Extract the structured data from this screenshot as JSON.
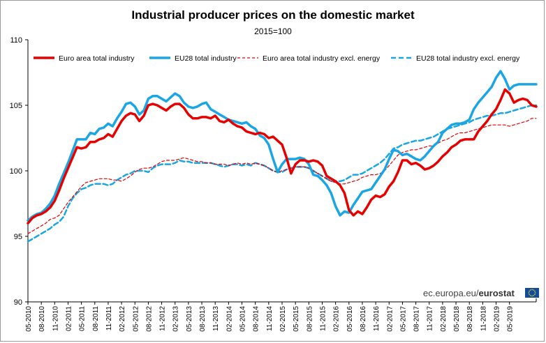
{
  "chart_data": {
    "type": "line",
    "title": "Industrial producer prices on the domestic market",
    "subtitle": "2015=100",
    "xlabel": "",
    "ylabel": "",
    "ylim": [
      90,
      110
    ],
    "yticks": [
      "90",
      "95",
      "100",
      "105",
      "110"
    ],
    "x_tick_labels": [
      "05-2010",
      "08-2010",
      "11-2010",
      "02-2011",
      "05-2011",
      "08-2011",
      "11-2011",
      "02-2012",
      "05-2012",
      "08-2012",
      "11-2012",
      "02-2013",
      "05-2013",
      "08-2013",
      "11-2013",
      "02-2014",
      "05-2014",
      "08-2014",
      "11-2014",
      "02-2015",
      "05-2015",
      "08-2015",
      "11-2015",
      "02-2016",
      "05-2016",
      "08-2016",
      "11-2016",
      "02-2017",
      "05-2017",
      "08-2017",
      "11-2017",
      "02-2018",
      "05-2018",
      "08-2018",
      "11-2018",
      "02-2019",
      "05-2019"
    ],
    "series": [
      {
        "name": "Euro area total industry",
        "color": "#e60000",
        "style": "solid-thick",
        "values": [
          96.0,
          96.4,
          96.6,
          96.7,
          96.9,
          97.2,
          97.7,
          98.5,
          99.4,
          100.2,
          101.0,
          101.8,
          101.7,
          101.8,
          102.2,
          102.2,
          102.4,
          102.5,
          102.8,
          102.6,
          103.2,
          103.8,
          104.2,
          104.4,
          104.3,
          103.8,
          104.2,
          105.0,
          105.1,
          105.0,
          104.8,
          104.6,
          104.9,
          105.1,
          105.1,
          104.8,
          104.3,
          104.0,
          104.0,
          104.1,
          104.1,
          104.0,
          104.2,
          103.8,
          103.7,
          103.9,
          103.6,
          103.4,
          103.3,
          103.0,
          102.9,
          102.8,
          102.9,
          102.8,
          102.5,
          102.6,
          102.3,
          102.0,
          101.0,
          99.8,
          100.5,
          100.8,
          100.8,
          100.7,
          100.8,
          100.7,
          100.4,
          99.6,
          99.4,
          99.2,
          98.9,
          98.3,
          97.0,
          96.6,
          96.9,
          96.7,
          97.2,
          97.8,
          98.1,
          98.0,
          98.2,
          98.8,
          99.2,
          99.9,
          100.8,
          100.8,
          100.5,
          100.6,
          100.4,
          100.1,
          100.2,
          100.4,
          100.7,
          101.1,
          101.4,
          101.8,
          102.0,
          102.3,
          102.4,
          102.4,
          102.4,
          103.0,
          103.4,
          103.8,
          104.3,
          104.7,
          105.4,
          106.2,
          105.9,
          105.2,
          105.4,
          105.5,
          105.4,
          105.0,
          104.9
        ],
        "data_name": "series-line-euro-area-total"
      },
      {
        "name": "EU28 total industry",
        "color": "#1aa6e4",
        "style": "solid-thick",
        "values": [
          96.2,
          96.5,
          96.7,
          96.8,
          97.1,
          97.5,
          98.1,
          99.0,
          99.8,
          100.6,
          101.5,
          102.4,
          102.4,
          102.4,
          102.9,
          102.8,
          103.2,
          103.3,
          103.6,
          103.4,
          104.0,
          104.5,
          105.1,
          105.2,
          104.9,
          104.3,
          104.6,
          105.5,
          105.7,
          105.7,
          105.5,
          105.3,
          105.6,
          105.9,
          105.7,
          105.2,
          104.9,
          104.8,
          104.9,
          105.1,
          105.2,
          104.7,
          104.5,
          104.3,
          104.1,
          103.9,
          103.8,
          103.7,
          103.6,
          103.7,
          103.4,
          103.2,
          102.7,
          102.5,
          102.0,
          100.9,
          99.9,
          100.5,
          100.9,
          100.9,
          100.9,
          101.0,
          100.9,
          100.5,
          99.7,
          99.6,
          99.3,
          98.9,
          98.3,
          97.3,
          96.6,
          96.9,
          96.8,
          97.4,
          97.9,
          98.4,
          98.5,
          98.6,
          99.1,
          99.6,
          100.1,
          100.9,
          101.6,
          101.5,
          101.2,
          101.3,
          101.1,
          100.9,
          100.8,
          101.1,
          101.5,
          101.9,
          102.2,
          102.9,
          103.2,
          103.5,
          103.6,
          103.6,
          103.7,
          103.9,
          104.7,
          105.2,
          105.6,
          106.0,
          106.4,
          107.1,
          107.6,
          107.0,
          106.2,
          106.5,
          106.6,
          106.6,
          106.6,
          106.6,
          106.6
        ],
        "data_name": "series-line-eu28-total"
      },
      {
        "name": "Euro area total industry excl. energy",
        "color": "#e60000",
        "style": "dashed-thin",
        "values": [
          95.2,
          95.4,
          95.6,
          95.8,
          96.0,
          96.3,
          96.4,
          96.6,
          97.1,
          97.6,
          98.0,
          98.4,
          98.8,
          99.1,
          99.2,
          99.3,
          99.4,
          99.4,
          99.4,
          99.3,
          99.3,
          99.2,
          99.4,
          99.6,
          99.9,
          100.1,
          100.2,
          100.2,
          100.3,
          100.5,
          100.7,
          100.8,
          100.8,
          100.8,
          100.9,
          101.0,
          100.9,
          100.8,
          100.7,
          100.7,
          100.6,
          100.6,
          100.5,
          100.5,
          100.5,
          100.4,
          100.5,
          100.6,
          100.5,
          100.6,
          100.5,
          100.6,
          100.5,
          100.4,
          100.2,
          100.0,
          99.9,
          100.0,
          100.1,
          100.2,
          100.3,
          100.3,
          100.3,
          100.2,
          100.0,
          99.8,
          99.6,
          99.4,
          99.2,
          99.1,
          99.0,
          99.0,
          99.1,
          99.2,
          99.3,
          99.5,
          99.6,
          99.7,
          99.7,
          99.8,
          100.0,
          100.4,
          100.8,
          101.2,
          101.4,
          101.5,
          101.6,
          101.6,
          101.7,
          101.8,
          101.9,
          101.9,
          102.1,
          102.3,
          102.4,
          102.6,
          102.8,
          102.9,
          102.9,
          103.0,
          103.1,
          103.2,
          103.3,
          103.4,
          103.5,
          103.5,
          103.5,
          103.5,
          103.4,
          103.5,
          103.6,
          103.7,
          103.8,
          104.0,
          104.0
        ],
        "data_name": "series-line-euro-area-excl-energy"
      },
      {
        "name": "EU28 total industry excl. energy",
        "color": "#1aa6e4",
        "style": "dashed-thick",
        "values": [
          94.6,
          94.8,
          95.0,
          95.2,
          95.4,
          95.6,
          95.9,
          96.1,
          96.5,
          97.3,
          97.9,
          98.3,
          98.6,
          98.7,
          98.9,
          99.0,
          99.0,
          99.0,
          98.9,
          99.0,
          99.3,
          99.5,
          99.7,
          99.8,
          100.0,
          100.0,
          100.0,
          99.9,
          100.2,
          100.4,
          100.5,
          100.5,
          100.5,
          100.6,
          100.8,
          100.7,
          100.7,
          100.6,
          100.6,
          100.6,
          100.6,
          100.6,
          100.5,
          100.4,
          100.3,
          100.4,
          100.5,
          100.5,
          100.4,
          100.5,
          100.4,
          100.6,
          100.5,
          100.4,
          100.2,
          100.0,
          99.9,
          99.9,
          100.1,
          100.2,
          100.3,
          100.3,
          100.3,
          100.2,
          100.0,
          99.8,
          99.6,
          99.4,
          99.2,
          99.2,
          99.2,
          99.3,
          99.5,
          99.7,
          99.7,
          99.8,
          100.0,
          100.2,
          100.4,
          100.6,
          100.9,
          101.3,
          101.7,
          101.8,
          102.0,
          102.1,
          102.2,
          102.3,
          102.3,
          102.4,
          102.5,
          102.6,
          102.8,
          103.0,
          103.2,
          103.3,
          103.4,
          103.5,
          103.6,
          103.7,
          103.9,
          104.0,
          104.1,
          104.2,
          104.2,
          104.3,
          104.4,
          104.4,
          104.5,
          104.6,
          104.7,
          104.8,
          104.9,
          105.0,
          105.0
        ],
        "data_name": "series-line-eu28-excl-energy"
      }
    ],
    "legend_position": "top"
  },
  "source_text": "ec.europa.eu/",
  "source_brand": "eurostat",
  "logo_icon": "eu-flag-icon",
  "colors": {
    "red": "#e60000",
    "blue": "#1aa6e4",
    "axis": "#000000",
    "logo_bg": "#0f4c9c",
    "logo_stars": "#ffd200"
  }
}
